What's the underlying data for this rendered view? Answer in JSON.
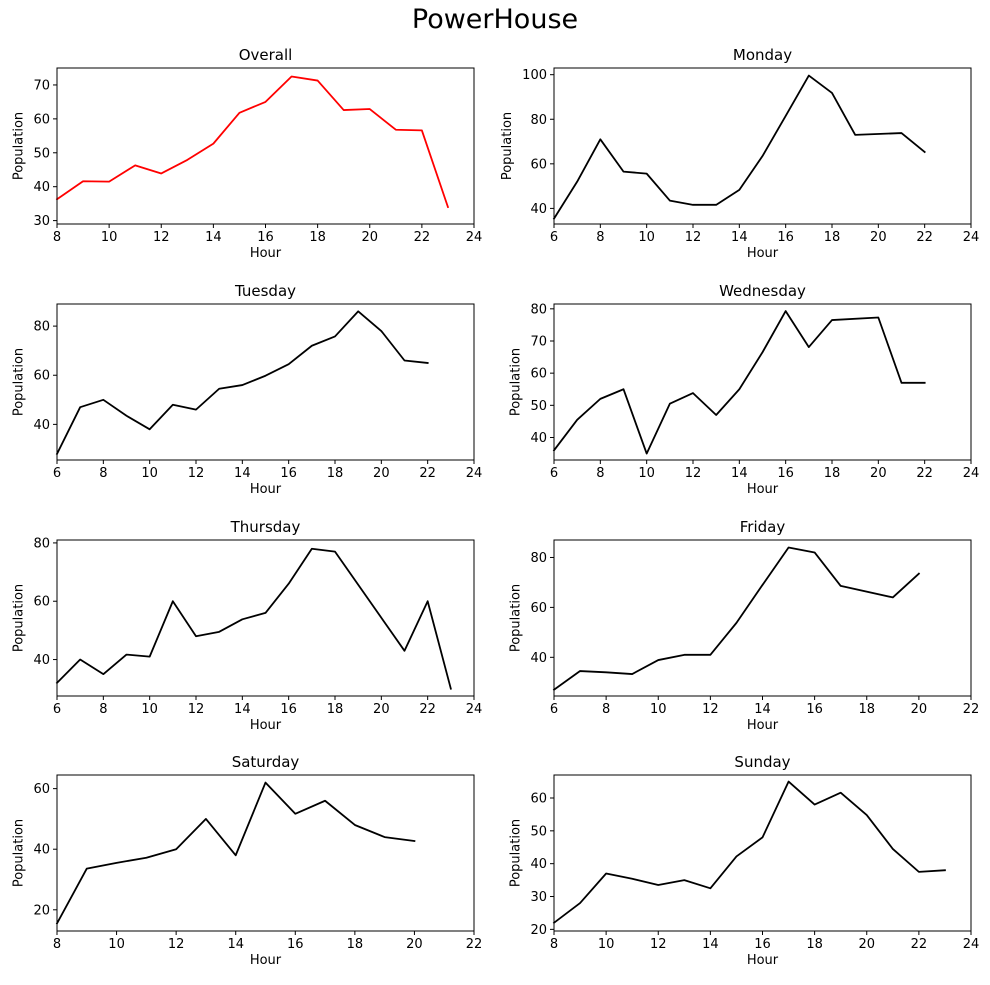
{
  "figure": {
    "title": "PowerHouse"
  },
  "chart_data": [
    {
      "type": "line",
      "title": "Overall",
      "xlabel": "Hour",
      "ylabel": "Population",
      "xlim": [
        8,
        24
      ],
      "ylim": [
        29,
        75
      ],
      "xticks": [
        8,
        10,
        12,
        14,
        16,
        18,
        20,
        22,
        24
      ],
      "yticks": [
        30,
        40,
        50,
        60,
        70
      ],
      "series": [
        {
          "color": "#ff0000",
          "x": [
            8,
            9,
            10,
            11,
            12,
            13,
            14,
            15,
            16,
            17,
            18,
            19,
            20,
            21,
            22,
            23
          ],
          "y": [
            36.3,
            41.6,
            41.5,
            46.3,
            43.9,
            47.9,
            52.7,
            61.8,
            65.0,
            72.5,
            71.3,
            62.6,
            62.9,
            56.8,
            56.6,
            34.0
          ]
        }
      ]
    },
    {
      "type": "line",
      "title": "Monday",
      "xlabel": "Hour",
      "ylabel": "Population",
      "xlim": [
        6,
        24
      ],
      "ylim": [
        33,
        103
      ],
      "xticks": [
        6,
        8,
        10,
        12,
        14,
        16,
        18,
        20,
        22,
        24
      ],
      "yticks": [
        40,
        60,
        80,
        100
      ],
      "series": [
        {
          "color": "#000000",
          "x": [
            6,
            7,
            8,
            9,
            10,
            11,
            12,
            13,
            14,
            15,
            16,
            17,
            18,
            19,
            21,
            22
          ],
          "y": [
            35.4,
            52.0,
            71.0,
            56.5,
            55.6,
            43.5,
            41.6,
            41.6,
            48.3,
            63.5,
            81.5,
            99.6,
            91.8,
            73.0,
            73.8,
            65.3
          ]
        }
      ]
    },
    {
      "type": "line",
      "title": "Tuesday",
      "xlabel": "Hour",
      "ylabel": "Population",
      "xlim": [
        6,
        24
      ],
      "ylim": [
        25.5,
        89
      ],
      "xticks": [
        6,
        8,
        10,
        12,
        14,
        16,
        18,
        20,
        22,
        24
      ],
      "yticks": [
        40,
        60,
        80
      ],
      "series": [
        {
          "color": "#000000",
          "x": [
            6,
            7,
            8,
            9,
            10,
            11,
            12,
            13,
            14,
            15,
            16,
            17,
            18,
            19,
            20,
            21,
            22
          ],
          "y": [
            28.0,
            47.0,
            50.0,
            43.5,
            38.0,
            48.0,
            46.0,
            54.5,
            56.0,
            59.8,
            64.5,
            72.0,
            75.8,
            86.0,
            78.0,
            66.0,
            65.0
          ]
        }
      ]
    },
    {
      "type": "line",
      "title": "Wednesday",
      "xlabel": "Hour",
      "ylabel": "Population",
      "xlim": [
        6,
        24
      ],
      "ylim": [
        33,
        81.5
      ],
      "xticks": [
        6,
        8,
        10,
        12,
        14,
        16,
        18,
        20,
        22,
        24
      ],
      "yticks": [
        40,
        50,
        60,
        70,
        80
      ],
      "series": [
        {
          "color": "#000000",
          "x": [
            6,
            7,
            8,
            9,
            10,
            11,
            12,
            13,
            14,
            15,
            16,
            17,
            18,
            20,
            21,
            22
          ],
          "y": [
            36.0,
            45.5,
            52.0,
            55.0,
            35.0,
            50.5,
            53.8,
            47.0,
            55.0,
            66.5,
            79.3,
            68.1,
            76.5,
            77.3,
            57.0,
            57.0
          ]
        }
      ]
    },
    {
      "type": "line",
      "title": "Thursday",
      "xlabel": "Hour",
      "ylabel": "Population",
      "xlim": [
        6,
        24
      ],
      "ylim": [
        27.5,
        81
      ],
      "xticks": [
        6,
        8,
        10,
        12,
        14,
        16,
        18,
        20,
        22,
        24
      ],
      "yticks": [
        40,
        60,
        80
      ],
      "series": [
        {
          "color": "#000000",
          "x": [
            6,
            7,
            8,
            9,
            10,
            11,
            12,
            13,
            14,
            15,
            16,
            17,
            18,
            21,
            22,
            23
          ],
          "y": [
            32.0,
            40.0,
            35.0,
            41.7,
            41.0,
            60.0,
            48.0,
            49.5,
            53.8,
            56.0,
            66.0,
            78.0,
            77.0,
            43.0,
            60.0,
            30.0
          ]
        }
      ]
    },
    {
      "type": "line",
      "title": "Friday",
      "xlabel": "Hour",
      "ylabel": "Population",
      "xlim": [
        6,
        22
      ],
      "ylim": [
        24.5,
        87
      ],
      "xticks": [
        6,
        8,
        10,
        12,
        14,
        16,
        18,
        20,
        22
      ],
      "yticks": [
        40,
        60,
        80
      ],
      "series": [
        {
          "color": "#000000",
          "x": [
            6,
            7,
            8,
            9,
            10,
            11,
            12,
            13,
            14,
            15,
            16,
            17,
            19,
            20
          ],
          "y": [
            27.0,
            34.5,
            34.0,
            33.3,
            38.9,
            41.0,
            41.0,
            53.8,
            69.0,
            84.0,
            82.0,
            68.6,
            64.0,
            73.5
          ]
        }
      ]
    },
    {
      "type": "line",
      "title": "Saturday",
      "xlabel": "Hour",
      "ylabel": "Population",
      "xlim": [
        8,
        22
      ],
      "ylim": [
        13,
        64.5
      ],
      "xticks": [
        8,
        10,
        12,
        14,
        16,
        18,
        20,
        22
      ],
      "yticks": [
        20,
        40,
        60
      ],
      "series": [
        {
          "color": "#000000",
          "x": [
            8,
            9,
            10,
            11,
            12,
            13,
            14,
            15,
            16,
            17,
            18,
            19,
            20
          ],
          "y": [
            15.5,
            33.6,
            35.5,
            37.2,
            40.0,
            50.0,
            38.0,
            62.0,
            51.7,
            56.0,
            48.0,
            44.0,
            42.7
          ]
        }
      ]
    },
    {
      "type": "line",
      "title": "Sunday",
      "xlabel": "Hour",
      "ylabel": "Population",
      "xlim": [
        8,
        24
      ],
      "ylim": [
        19.5,
        67
      ],
      "xticks": [
        8,
        10,
        12,
        14,
        16,
        18,
        20,
        22,
        24
      ],
      "yticks": [
        20,
        30,
        40,
        50,
        60
      ],
      "series": [
        {
          "color": "#000000",
          "x": [
            8,
            9,
            10,
            11,
            12,
            13,
            14,
            15,
            16,
            17,
            18,
            19,
            20,
            21,
            22,
            23
          ],
          "y": [
            22.0,
            28.0,
            37.0,
            35.4,
            33.5,
            35.0,
            32.5,
            42.2,
            48.0,
            65.0,
            58.0,
            61.6,
            54.8,
            44.5,
            37.5,
            38.0
          ]
        }
      ]
    }
  ]
}
